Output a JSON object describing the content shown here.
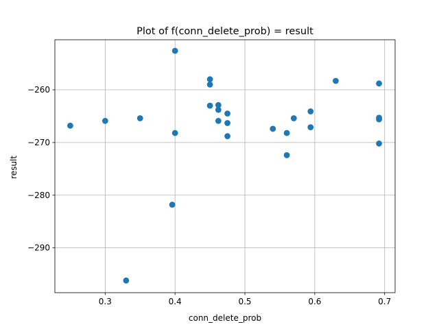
{
  "chart_data": {
    "type": "scatter",
    "title": "Plot of f(conn_delete_prob) = result",
    "xlabel": "conn_delete_prob",
    "ylabel": "result",
    "xlim": [
      0.228,
      0.715
    ],
    "ylim": [
      -298.5,
      -250.5
    ],
    "xticks": [
      0.3,
      0.4,
      0.5,
      0.6,
      0.7
    ],
    "xtick_labels": [
      "0.3",
      "0.4",
      "0.5",
      "0.6",
      "0.7"
    ],
    "yticks": [
      -290,
      -280,
      -270,
      -260
    ],
    "ytick_labels": [
      "−290",
      "−280",
      "−270",
      "−260"
    ],
    "grid": true,
    "marker_color": "#1f77b4",
    "points": [
      {
        "x": 0.25,
        "y": -266.8
      },
      {
        "x": 0.3,
        "y": -265.9
      },
      {
        "x": 0.33,
        "y": -296.2
      },
      {
        "x": 0.35,
        "y": -265.4
      },
      {
        "x": 0.396,
        "y": -281.8
      },
      {
        "x": 0.4,
        "y": -252.6
      },
      {
        "x": 0.4,
        "y": -268.2
      },
      {
        "x": 0.45,
        "y": -258.0
      },
      {
        "x": 0.45,
        "y": -259.0
      },
      {
        "x": 0.45,
        "y": -263.0
      },
      {
        "x": 0.462,
        "y": -262.9
      },
      {
        "x": 0.462,
        "y": -263.8
      },
      {
        "x": 0.462,
        "y": -265.9
      },
      {
        "x": 0.475,
        "y": -264.5
      },
      {
        "x": 0.475,
        "y": -266.3
      },
      {
        "x": 0.475,
        "y": -268.8
      },
      {
        "x": 0.54,
        "y": -267.4
      },
      {
        "x": 0.56,
        "y": -268.2
      },
      {
        "x": 0.56,
        "y": -272.4
      },
      {
        "x": 0.57,
        "y": -265.4
      },
      {
        "x": 0.594,
        "y": -264.1
      },
      {
        "x": 0.594,
        "y": -267.1
      },
      {
        "x": 0.63,
        "y": -258.3
      },
      {
        "x": 0.692,
        "y": -258.8
      },
      {
        "x": 0.692,
        "y": -265.3
      },
      {
        "x": 0.692,
        "y": -265.6
      },
      {
        "x": 0.692,
        "y": -270.2
      }
    ]
  }
}
